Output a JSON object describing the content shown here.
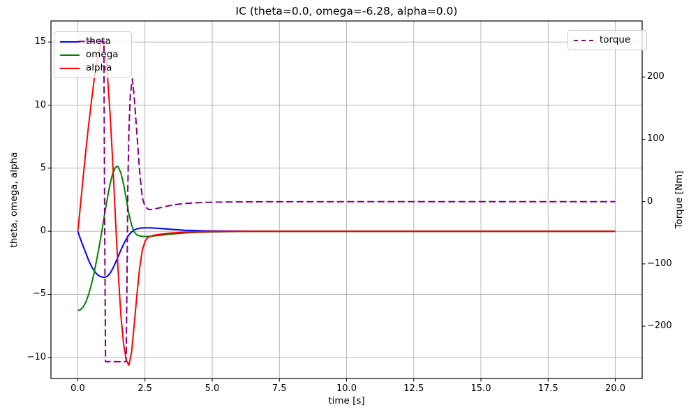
{
  "chart_data": {
    "type": "line",
    "title": "IC (theta=0.0, omega=-6.28, alpha=0.0)",
    "xlabel": "time [s]",
    "ylabel_left": "theta, omega, alpha",
    "ylabel_right": "Torque [Nm]",
    "grid": true,
    "legend_left_position": "upper left",
    "legend_right_position": "upper right",
    "xlim": [
      -1,
      21
    ],
    "ylim_left": [
      -11.67,
      16.67
    ],
    "ylim_right": [
      -284,
      290
    ],
    "x_ticks": [
      {
        "v": 0,
        "label": "0.0"
      },
      {
        "v": 2.5,
        "label": "2.5"
      },
      {
        "v": 5,
        "label": "5.0"
      },
      {
        "v": 7.5,
        "label": "7.5"
      },
      {
        "v": 10,
        "label": "10.0"
      },
      {
        "v": 12.5,
        "label": "12.5"
      },
      {
        "v": 15,
        "label": "15.0"
      },
      {
        "v": 17.5,
        "label": "17.5"
      },
      {
        "v": 20,
        "label": "20.0"
      }
    ],
    "y_ticks_left": [
      {
        "v": 15,
        "label": "15"
      },
      {
        "v": 10,
        "label": "10"
      },
      {
        "v": 5,
        "label": "5"
      },
      {
        "v": 0,
        "label": "0"
      },
      {
        "v": -5,
        "label": "−5"
      },
      {
        "v": -10,
        "label": "−10"
      }
    ],
    "y_ticks_right": [
      {
        "v": 200,
        "label": "200"
      },
      {
        "v": 100,
        "label": "100"
      },
      {
        "v": 0,
        "label": "0"
      },
      {
        "v": -100,
        "label": "−100"
      },
      {
        "v": -200,
        "label": "−200"
      }
    ],
    "legend_left": [
      "theta",
      "omega",
      "alpha"
    ],
    "legend_right": [
      "torque"
    ],
    "grid_color": "#b0b0b0",
    "series": [
      {
        "name": "theta",
        "axis": "left",
        "color": "#0000ff",
        "dash": false,
        "points": [
          [
            0,
            0
          ],
          [
            0.1,
            -0.62
          ],
          [
            0.2,
            -1.2
          ],
          [
            0.3,
            -1.73
          ],
          [
            0.4,
            -2.3
          ],
          [
            0.5,
            -2.76
          ],
          [
            0.6,
            -3.12
          ],
          [
            0.7,
            -3.38
          ],
          [
            0.8,
            -3.55
          ],
          [
            0.9,
            -3.63
          ],
          [
            1.0,
            -3.65
          ],
          [
            1.1,
            -3.57
          ],
          [
            1.2,
            -3.33
          ],
          [
            1.3,
            -2.96
          ],
          [
            1.4,
            -2.5
          ],
          [
            1.5,
            -2.0
          ],
          [
            1.6,
            -1.5
          ],
          [
            1.7,
            -1.03
          ],
          [
            1.8,
            -0.63
          ],
          [
            1.9,
            -0.3
          ],
          [
            2.0,
            -0.06
          ],
          [
            2.1,
            0.1
          ],
          [
            2.2,
            0.19
          ],
          [
            2.3,
            0.24
          ],
          [
            2.5,
            0.27
          ],
          [
            2.7,
            0.27
          ],
          [
            3.0,
            0.23
          ],
          [
            3.5,
            0.15
          ],
          [
            4.0,
            0.08
          ],
          [
            4.5,
            0.04
          ],
          [
            5.0,
            0.02
          ],
          [
            6.0,
            0.01
          ],
          [
            7.0,
            0
          ],
          [
            8.0,
            0
          ],
          [
            10,
            0
          ],
          [
            12,
            0
          ],
          [
            14,
            0
          ],
          [
            16,
            0
          ],
          [
            18,
            0
          ],
          [
            20,
            0
          ]
        ]
      },
      {
        "name": "omega",
        "axis": "left",
        "color": "#008000",
        "dash": false,
        "points": [
          [
            0,
            -6.28
          ],
          [
            0.1,
            -6.22
          ],
          [
            0.2,
            -6.0
          ],
          [
            0.3,
            -5.62
          ],
          [
            0.4,
            -5.02
          ],
          [
            0.5,
            -4.25
          ],
          [
            0.6,
            -3.35
          ],
          [
            0.7,
            -2.3
          ],
          [
            0.8,
            -1.15
          ],
          [
            0.9,
            0.1
          ],
          [
            1.0,
            1.4
          ],
          [
            1.1,
            2.65
          ],
          [
            1.2,
            3.75
          ],
          [
            1.3,
            4.6
          ],
          [
            1.4,
            5.05
          ],
          [
            1.45,
            5.15
          ],
          [
            1.5,
            5.1
          ],
          [
            1.6,
            4.65
          ],
          [
            1.7,
            3.75
          ],
          [
            1.8,
            2.6
          ],
          [
            1.9,
            1.4
          ],
          [
            2.0,
            0.5
          ],
          [
            2.1,
            -0.05
          ],
          [
            2.2,
            -0.3
          ],
          [
            2.35,
            -0.4
          ],
          [
            2.5,
            -0.42
          ],
          [
            2.7,
            -0.4
          ],
          [
            3.0,
            -0.33
          ],
          [
            3.5,
            -0.22
          ],
          [
            4.0,
            -0.13
          ],
          [
            4.5,
            -0.08
          ],
          [
            5.0,
            -0.05
          ],
          [
            5.5,
            -0.03
          ],
          [
            6.0,
            -0.02
          ],
          [
            7.0,
            -0.01
          ],
          [
            8.0,
            0
          ],
          [
            10,
            0
          ],
          [
            12,
            0
          ],
          [
            14,
            0
          ],
          [
            16,
            0
          ],
          [
            18,
            0
          ],
          [
            20,
            0
          ]
        ]
      },
      {
        "name": "alpha",
        "axis": "left",
        "color": "#ff0000",
        "dash": false,
        "points": [
          [
            0,
            0
          ],
          [
            0.05,
            1.0
          ],
          [
            0.1,
            2.1
          ],
          [
            0.2,
            4.3
          ],
          [
            0.3,
            6.4
          ],
          [
            0.4,
            8.4
          ],
          [
            0.5,
            10.2
          ],
          [
            0.6,
            11.9
          ],
          [
            0.7,
            13.3
          ],
          [
            0.8,
            14.4
          ],
          [
            0.9,
            15.1
          ],
          [
            0.93,
            15.2
          ],
          [
            1.0,
            14.5
          ],
          [
            1.1,
            12.4
          ],
          [
            1.2,
            9.3
          ],
          [
            1.3,
            5.4
          ],
          [
            1.4,
            1.0
          ],
          [
            1.5,
            -3.2
          ],
          [
            1.6,
            -6.6
          ],
          [
            1.7,
            -8.9
          ],
          [
            1.8,
            -10.2
          ],
          [
            1.9,
            -10.62
          ],
          [
            2.0,
            -9.6
          ],
          [
            2.1,
            -7.4
          ],
          [
            2.2,
            -5.0
          ],
          [
            2.3,
            -2.9
          ],
          [
            2.4,
            -1.5
          ],
          [
            2.5,
            -0.8
          ],
          [
            2.6,
            -0.5
          ],
          [
            2.8,
            -0.33
          ],
          [
            3.0,
            -0.25
          ],
          [
            3.5,
            -0.13
          ],
          [
            4.0,
            -0.07
          ],
          [
            4.5,
            -0.04
          ],
          [
            5.0,
            -0.02
          ],
          [
            6.0,
            -0.01
          ],
          [
            7.0,
            0
          ],
          [
            8,
            0
          ],
          [
            10,
            0
          ],
          [
            12,
            0
          ],
          [
            14,
            0
          ],
          [
            16,
            0
          ],
          [
            18,
            0
          ],
          [
            20,
            0
          ]
        ]
      },
      {
        "name": "torque",
        "axis": "right",
        "color": "#800080",
        "dash": true,
        "points": [
          [
            0,
            257
          ],
          [
            0.5,
            257
          ],
          [
            0.9,
            257
          ],
          [
            0.97,
            257
          ],
          [
            1.0,
            -40
          ],
          [
            1.03,
            -257
          ],
          [
            1.2,
            -257
          ],
          [
            1.5,
            -257
          ],
          [
            1.8,
            -257
          ],
          [
            1.83,
            -120
          ],
          [
            1.86,
            20
          ],
          [
            1.9,
            110
          ],
          [
            1.95,
            170
          ],
          [
            2.03,
            197
          ],
          [
            2.1,
            168
          ],
          [
            2.2,
            108
          ],
          [
            2.3,
            48
          ],
          [
            2.4,
            6
          ],
          [
            2.5,
            -8
          ],
          [
            2.65,
            -13
          ],
          [
            2.8,
            -12.5
          ],
          [
            3.0,
            -10.5
          ],
          [
            3.3,
            -7.5
          ],
          [
            3.6,
            -5.0
          ],
          [
            4.0,
            -3.0
          ],
          [
            4.5,
            -1.7
          ],
          [
            5.0,
            -1.0
          ],
          [
            5.5,
            -0.7
          ],
          [
            6.0,
            -0.5
          ],
          [
            7.0,
            -0.3
          ],
          [
            8.0,
            -0.2
          ],
          [
            10,
            -0.15
          ],
          [
            12,
            -0.1
          ],
          [
            14,
            -0.1
          ],
          [
            16,
            -0.1
          ],
          [
            18,
            -0.1
          ],
          [
            20,
            -0.1
          ]
        ]
      }
    ]
  }
}
